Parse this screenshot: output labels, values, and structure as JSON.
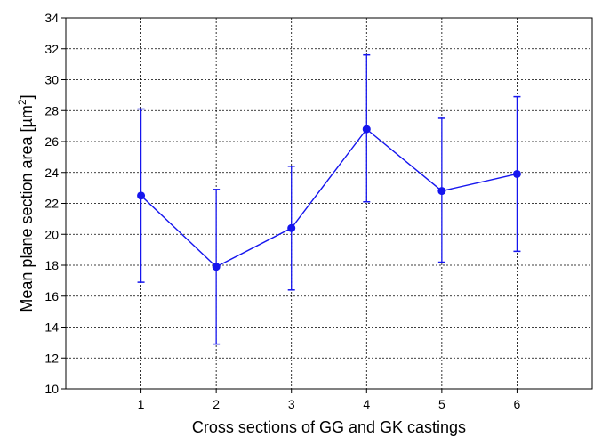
{
  "chart_data": {
    "type": "line",
    "title": "",
    "xlabel": "Cross sections of GG and GK castings",
    "ylabel_main": "Mean plane section area [µm",
    "ylabel_sup": "2",
    "ylabel_close": "]",
    "x": [
      1,
      2,
      3,
      4,
      5,
      6
    ],
    "xlim": [
      0,
      7
    ],
    "ylim": [
      10,
      34
    ],
    "y_ticks": [
      10,
      12,
      14,
      16,
      18,
      20,
      22,
      24,
      26,
      28,
      30,
      32,
      34
    ],
    "grid": true,
    "series": [
      {
        "values": [
          22.5,
          17.9,
          20.4,
          26.8,
          22.8,
          23.9
        ],
        "error_upper": [
          28.1,
          22.9,
          24.4,
          31.6,
          27.5,
          28.9
        ],
        "error_lower": [
          16.9,
          12.9,
          16.4,
          22.1,
          18.2,
          18.9
        ],
        "color": "#1515ee"
      }
    ]
  }
}
